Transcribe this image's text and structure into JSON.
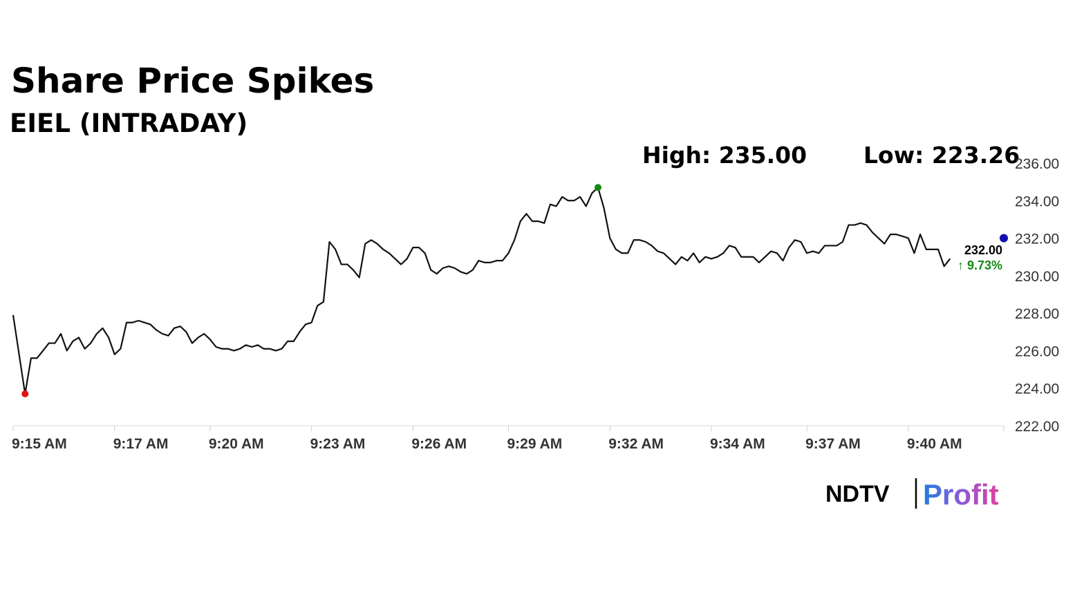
{
  "chart_data": {
    "type": "line",
    "title": "Share Price Spikes",
    "subtitle": "EIEL (INTRADAY)",
    "annotations": {
      "high": "High: 235.00",
      "low": "Low: 223.26",
      "last": {
        "value": 232,
        "label": "232.00"
      },
      "change": "↑ 9.73%"
    },
    "brand": {
      "left": "NDTV",
      "right": "Profit"
    },
    "color": "#111111",
    "high_color": "#138a13",
    "low_color": "#e01010",
    "last_color": "#1010b0",
    "change_color": "#138a13",
    "values": [
      227.9,
      225.8,
      223.7,
      225.6,
      225.6,
      226.0,
      226.4,
      226.4,
      226.9,
      226.0,
      226.5,
      226.7,
      226.1,
      226.4,
      226.9,
      227.2,
      226.7,
      225.8,
      226.1,
      227.5,
      227.5,
      227.6,
      227.5,
      227.4,
      227.1,
      226.9,
      226.8,
      227.2,
      227.3,
      227.0,
      226.4,
      226.7,
      226.9,
      226.6,
      226.2,
      226.1,
      226.1,
      226.0,
      226.1,
      226.3,
      226.2,
      226.3,
      226.1,
      226.1,
      226.0,
      226.1,
      226.5,
      226.5,
      227.0,
      227.4,
      227.5,
      228.4,
      228.6,
      231.8,
      231.4,
      230.6,
      230.6,
      230.3,
      229.9,
      231.7,
      231.9,
      231.7,
      231.4,
      231.2,
      230.9,
      230.6,
      230.9,
      231.5,
      231.5,
      231.2,
      230.3,
      230.1,
      230.4,
      230.5,
      230.4,
      230.2,
      230.1,
      230.3,
      230.8,
      230.7,
      230.7,
      230.8,
      230.8,
      231.2,
      231.9,
      232.9,
      233.3,
      232.9,
      232.9,
      232.8,
      233.8,
      233.7,
      234.2,
      234.0,
      234.0,
      234.2,
      233.7,
      234.4,
      234.7,
      233.6,
      232.0,
      231.4,
      231.2,
      231.2,
      231.9,
      231.9,
      231.8,
      231.6,
      231.3,
      231.2,
      230.9,
      230.6,
      231.0,
      230.8,
      231.2,
      230.7,
      231.0,
      230.9,
      231.0,
      231.2,
      231.6,
      231.5,
      231.0,
      231.0,
      231.0,
      230.7,
      231.0,
      231.3,
      231.2,
      230.8,
      231.5,
      231.9,
      231.8,
      231.2,
      231.3,
      231.2,
      231.6,
      231.6,
      231.6,
      231.8,
      232.7,
      232.7,
      232.8,
      232.7,
      232.3,
      232.0,
      231.7,
      232.2,
      232.2,
      232.1,
      232.0,
      231.2,
      232.2,
      231.4,
      231.4,
      231.4,
      230.5,
      230.9
    ],
    "xlim": [
      0,
      166
    ],
    "xticks": [
      {
        "value": 0,
        "label": "9:15 AM"
      },
      {
        "value": 17,
        "label": "9:17 AM"
      },
      {
        "value": 33,
        "label": "9:20 AM"
      },
      {
        "value": 50,
        "label": "9:23 AM"
      },
      {
        "value": 67,
        "label": "9:26 AM"
      },
      {
        "value": 83,
        "label": "9:29 AM"
      },
      {
        "value": 100,
        "label": "9:32 AM"
      },
      {
        "value": 117,
        "label": "9:34 AM"
      },
      {
        "value": 133,
        "label": "9:37 AM"
      },
      {
        "value": 150,
        "label": "9:40 AM"
      }
    ],
    "ylim": [
      222,
      236
    ],
    "yticks": [
      {
        "value": 222,
        "label": "222.00"
      },
      {
        "value": 224,
        "label": "224.00"
      },
      {
        "value": 226,
        "label": "226.00"
      },
      {
        "value": 228,
        "label": "228.00"
      },
      {
        "value": 230,
        "label": "230.00"
      },
      {
        "value": 232,
        "label": "232.00"
      },
      {
        "value": 234,
        "label": "234.00"
      },
      {
        "value": 236,
        "label": "236.00"
      }
    ]
  }
}
